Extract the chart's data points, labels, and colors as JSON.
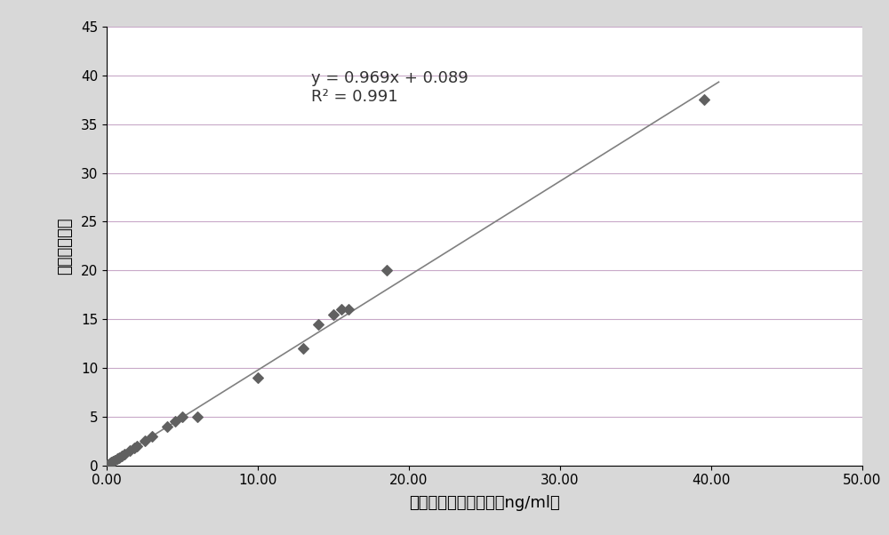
{
  "x_data": [
    0.05,
    0.08,
    0.1,
    0.15,
    0.2,
    0.25,
    0.3,
    0.4,
    0.5,
    0.7,
    0.8,
    1.0,
    1.2,
    1.5,
    1.8,
    2.0,
    2.5,
    3.0,
    4.0,
    4.5,
    5.0,
    6.0,
    10.0,
    13.0,
    14.0,
    15.0,
    15.5,
    16.0,
    18.5,
    39.5
  ],
  "y_data": [
    0.05,
    0.08,
    0.1,
    0.15,
    0.2,
    0.25,
    0.3,
    0.4,
    0.5,
    0.7,
    0.8,
    1.0,
    1.2,
    1.5,
    1.8,
    2.0,
    2.5,
    3.0,
    4.0,
    4.5,
    5.0,
    5.0,
    9.0,
    12.0,
    14.5,
    15.5,
    16.0,
    16.0,
    20.0,
    37.5
  ],
  "equation": "y = 0.969x + 0.089",
  "r_squared": "R² = 0.991",
  "slope": 0.969,
  "intercept": 0.089,
  "xlabel": "电化学发光测试结果（ng/ml）",
  "ylabel": "荆光测试结果",
  "xlim": [
    0,
    50
  ],
  "ylim": [
    0,
    45
  ],
  "xtick_labels": [
    "0.00",
    "10.00",
    "20.00",
    "30.00",
    "40.00",
    "50.00"
  ],
  "yticks": [
    0,
    5,
    10,
    15,
    20,
    25,
    30,
    35,
    40,
    45
  ],
  "marker_color": "#606060",
  "line_color": "#808080",
  "plot_bg_color": "#ffffff",
  "fig_bg_color": "#d8d8d8",
  "grid_color": "#c8a8c8",
  "annotation_fontsize": 13,
  "axis_label_fontsize": 13,
  "tick_fontsize": 11,
  "line_x_end": 40.5
}
